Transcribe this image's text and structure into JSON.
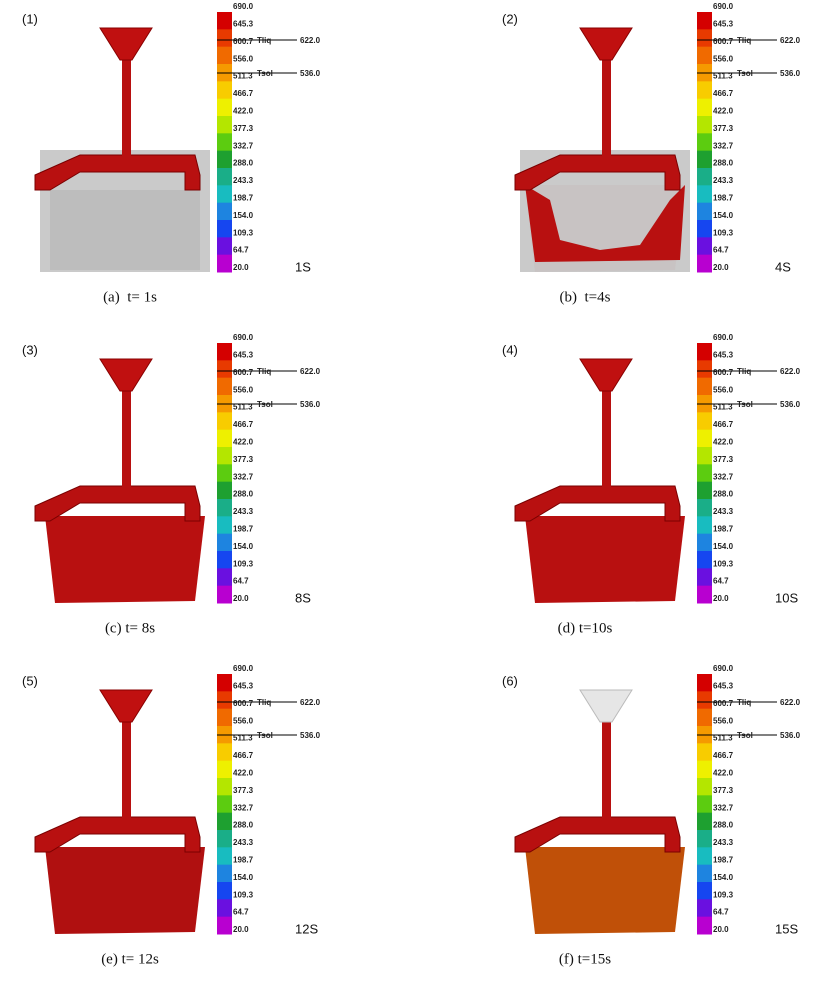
{
  "scale": {
    "labels": [
      "690.0",
      "645.3",
      "600.7",
      "556.0",
      "511.3",
      "466.7",
      "422.0",
      "377.3",
      "332.7",
      "288.0",
      "243.3",
      "198.7",
      "154.0",
      "109.3",
      "64.7",
      "20.0"
    ],
    "liquidus": {
      "name": "Tliq",
      "value": "622.0"
    },
    "solidus": {
      "name": "Tsol",
      "value": "536.0"
    }
  },
  "panels": [
    {
      "number": "(1)",
      "time": "1S",
      "caption": "(a)  t= 1s"
    },
    {
      "number": "(2)",
      "time": "4S",
      "caption": "(b)  t=4s"
    },
    {
      "number": "(3)",
      "time": "8S",
      "caption": "(c) t= 8s"
    },
    {
      "number": "(4)",
      "time": "10S",
      "caption": "(d) t=10s"
    },
    {
      "number": "(5)",
      "time": "12S",
      "caption": "(e) t= 12s"
    },
    {
      "number": "(6)",
      "time": "15S",
      "caption": "(f) t=15s"
    }
  ]
}
